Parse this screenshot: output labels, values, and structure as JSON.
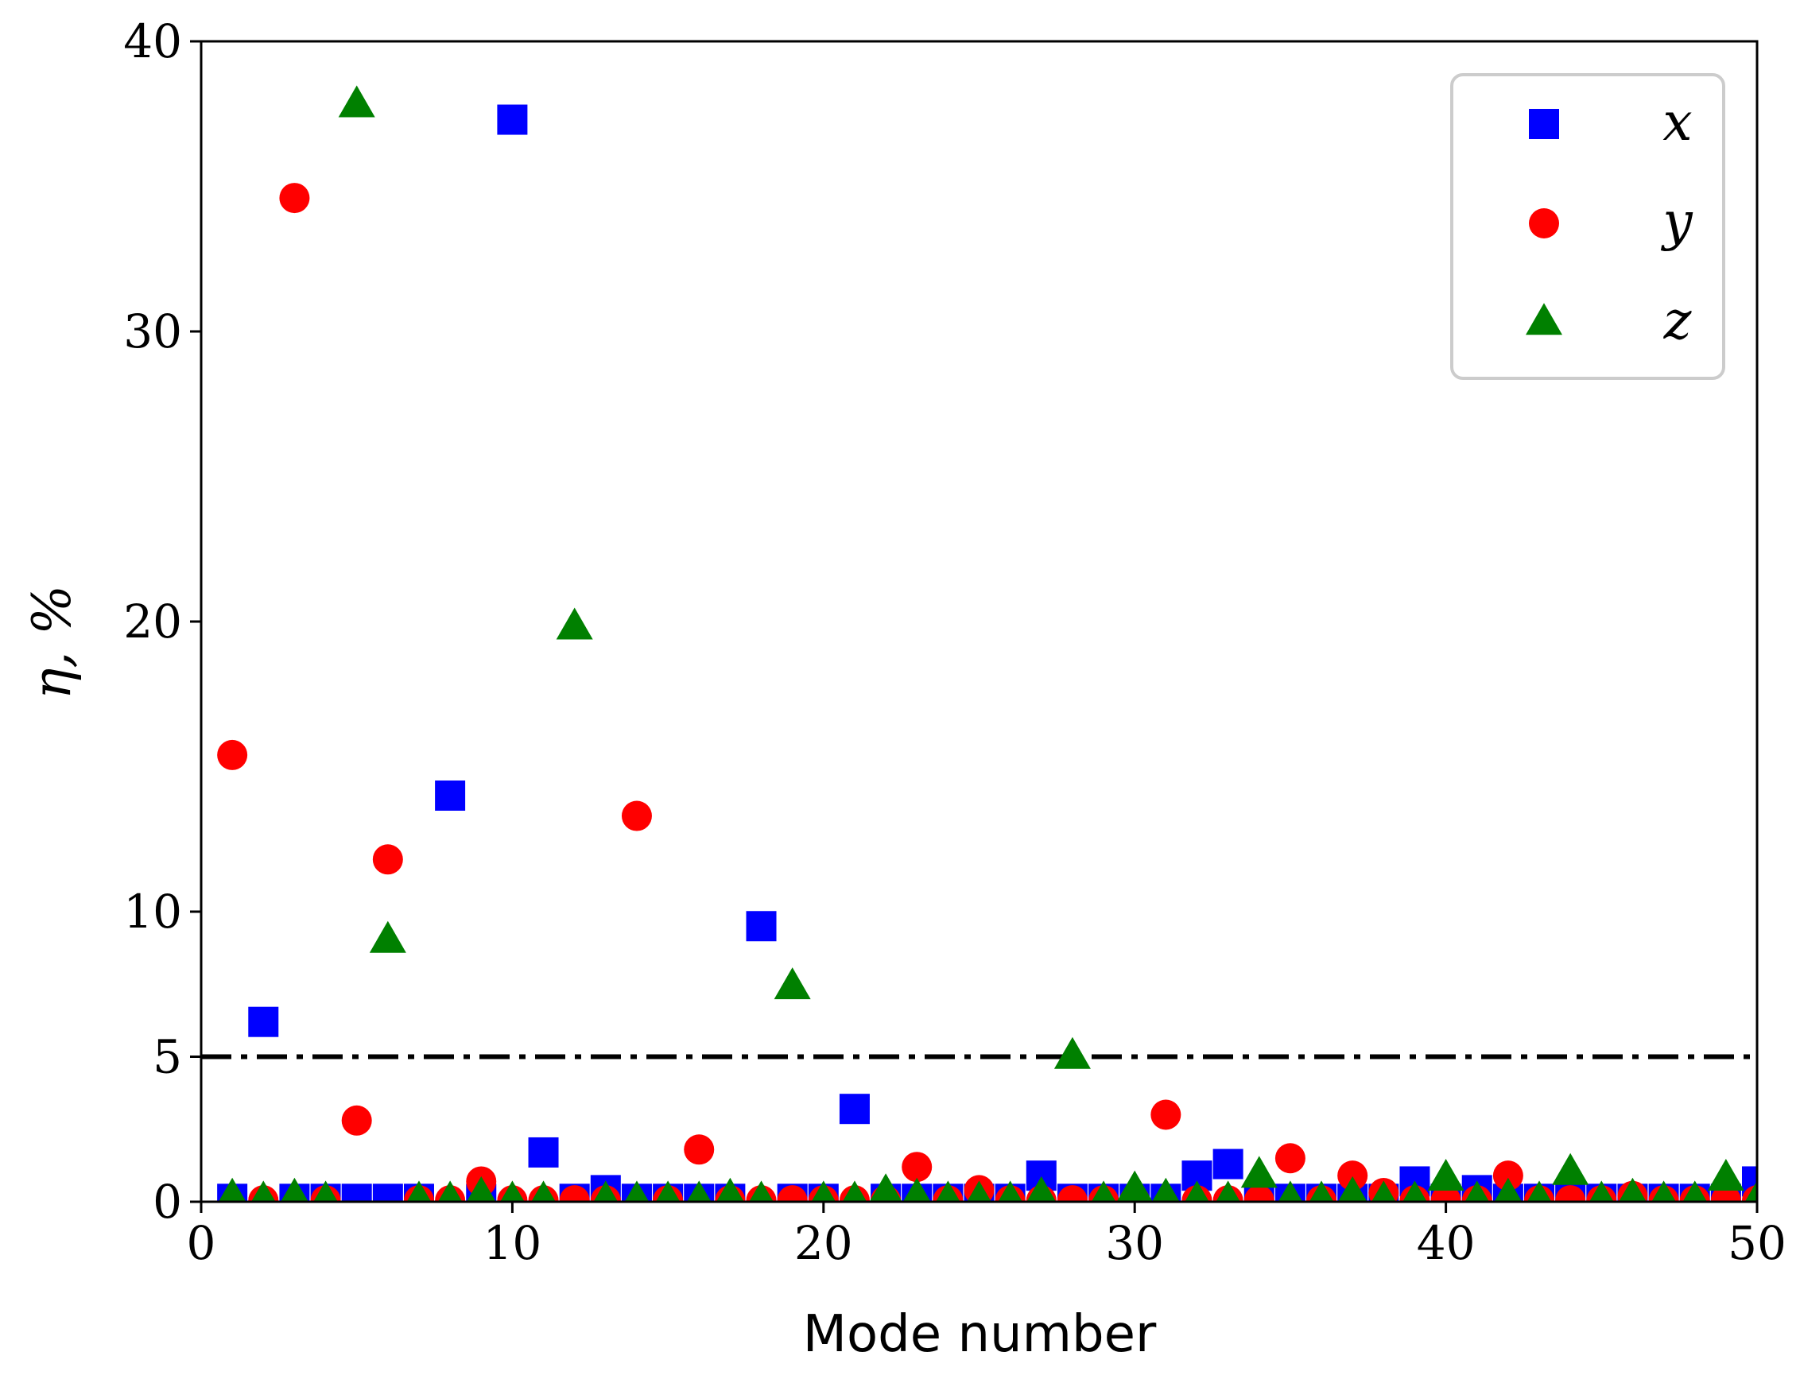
{
  "chart_data": {
    "type": "scatter",
    "title": "",
    "xlabel": "Mode number",
    "ylabel": "η, %",
    "xlim": [
      0,
      50
    ],
    "ylim": [
      0,
      40
    ],
    "xticks": [
      "0",
      "10",
      "20",
      "30",
      "40",
      "50"
    ],
    "yticks": [
      "0",
      "5",
      "10",
      "20",
      "30",
      "40"
    ],
    "grid": false,
    "legend_position": "top-right",
    "threshold": {
      "value": 5,
      "style": "dash-dot",
      "color": "#000000"
    },
    "series": [
      {
        "name": "x",
        "marker": "square",
        "color": "#0000ff",
        "points": [
          [
            1,
            0.1
          ],
          [
            2,
            6.2
          ],
          [
            3,
            0.1
          ],
          [
            4,
            0.1
          ],
          [
            5,
            0.1
          ],
          [
            6,
            0.1
          ],
          [
            7,
            0.1
          ],
          [
            8,
            14
          ],
          [
            9,
            0.1
          ],
          [
            10,
            37.3
          ],
          [
            11,
            1.7
          ],
          [
            12,
            0.1
          ],
          [
            13,
            0.4
          ],
          [
            14,
            0.1
          ],
          [
            15,
            0.1
          ],
          [
            16,
            0.1
          ],
          [
            17,
            0.1
          ],
          [
            18,
            9.5
          ],
          [
            19,
            0.1
          ],
          [
            20,
            0.1
          ],
          [
            21,
            3.2
          ],
          [
            22,
            0.1
          ],
          [
            23,
            0.1
          ],
          [
            24,
            0.1
          ],
          [
            25,
            0.1
          ],
          [
            26,
            0.1
          ],
          [
            27,
            0.9
          ],
          [
            28,
            0.1
          ],
          [
            29,
            0.1
          ],
          [
            30,
            0.1
          ],
          [
            31,
            0.1
          ],
          [
            32,
            0.9
          ],
          [
            33,
            1.3
          ],
          [
            34,
            0.1
          ],
          [
            35,
            0.1
          ],
          [
            36,
            0.1
          ],
          [
            37,
            0.1
          ],
          [
            38,
            0.1
          ],
          [
            39,
            0.7
          ],
          [
            40,
            0.1
          ],
          [
            41,
            0.4
          ],
          [
            42,
            0.1
          ],
          [
            43,
            0.1
          ],
          [
            44,
            0.1
          ],
          [
            45,
            0.1
          ],
          [
            46,
            0.1
          ],
          [
            47,
            0.1
          ],
          [
            48,
            0.1
          ],
          [
            49,
            0.1
          ],
          [
            50,
            0.7
          ]
        ]
      },
      {
        "name": "y",
        "marker": "circle",
        "color": "#ff0000",
        "points": [
          [
            1,
            15.4
          ],
          [
            2,
            0.05
          ],
          [
            3,
            34.6
          ],
          [
            4,
            0.05
          ],
          [
            5,
            2.8
          ],
          [
            6,
            11.8
          ],
          [
            7,
            0.05
          ],
          [
            8,
            0.05
          ],
          [
            9,
            0.7
          ],
          [
            10,
            0.05
          ],
          [
            11,
            0.05
          ],
          [
            12,
            0.05
          ],
          [
            13,
            0.05
          ],
          [
            14,
            13.3
          ],
          [
            15,
            0.05
          ],
          [
            16,
            1.8
          ],
          [
            17,
            0.05
          ],
          [
            18,
            0.05
          ],
          [
            19,
            0.05
          ],
          [
            20,
            0.05
          ],
          [
            21,
            0.05
          ],
          [
            22,
            0.05
          ],
          [
            23,
            1.2
          ],
          [
            24,
            0.05
          ],
          [
            25,
            0.4
          ],
          [
            26,
            0.05
          ],
          [
            27,
            0.05
          ],
          [
            28,
            0.05
          ],
          [
            29,
            0.05
          ],
          [
            30,
            0.05
          ],
          [
            31,
            3.0
          ],
          [
            32,
            0.05
          ],
          [
            33,
            0.05
          ],
          [
            34,
            0.05
          ],
          [
            35,
            1.5
          ],
          [
            36,
            0.05
          ],
          [
            37,
            0.9
          ],
          [
            38,
            0.3
          ],
          [
            39,
            0.05
          ],
          [
            40,
            0.05
          ],
          [
            41,
            0.05
          ],
          [
            42,
            0.9
          ],
          [
            43,
            0.05
          ],
          [
            44,
            0.05
          ],
          [
            45,
            0.05
          ],
          [
            46,
            0.2
          ],
          [
            47,
            0.05
          ],
          [
            48,
            0.05
          ],
          [
            49,
            0.05
          ],
          [
            50,
            0.05
          ]
        ]
      },
      {
        "name": "z",
        "marker": "triangle",
        "color": "#008000",
        "points": [
          [
            1,
            0.15
          ],
          [
            2,
            0.05
          ],
          [
            3,
            0.15
          ],
          [
            4,
            0.05
          ],
          [
            5,
            37.8
          ],
          [
            6,
            9.0
          ],
          [
            7,
            0.05
          ],
          [
            8,
            0.05
          ],
          [
            9,
            0.2
          ],
          [
            10,
            0.05
          ],
          [
            11,
            0.05
          ],
          [
            12,
            19.8
          ],
          [
            13,
            0.05
          ],
          [
            14,
            0.05
          ],
          [
            15,
            0.05
          ],
          [
            16,
            0.05
          ],
          [
            17,
            0.15
          ],
          [
            18,
            0.05
          ],
          [
            19,
            7.4
          ],
          [
            20,
            0.05
          ],
          [
            21,
            0.05
          ],
          [
            22,
            0.3
          ],
          [
            23,
            0.15
          ],
          [
            24,
            0.05
          ],
          [
            25,
            0.05
          ],
          [
            26,
            0.05
          ],
          [
            27,
            0.2
          ],
          [
            28,
            5.0
          ],
          [
            29,
            0.05
          ],
          [
            30,
            0.4
          ],
          [
            31,
            0.15
          ],
          [
            32,
            0.05
          ],
          [
            33,
            0.05
          ],
          [
            34,
            0.9
          ],
          [
            35,
            0.05
          ],
          [
            36,
            0.05
          ],
          [
            37,
            0.2
          ],
          [
            38,
            0.05
          ],
          [
            39,
            0.05
          ],
          [
            40,
            0.8
          ],
          [
            41,
            0.05
          ],
          [
            42,
            0.15
          ],
          [
            43,
            0.05
          ],
          [
            44,
            1.0
          ],
          [
            45,
            0.05
          ],
          [
            46,
            0.15
          ],
          [
            47,
            0.05
          ],
          [
            48,
            0.05
          ],
          [
            49,
            0.8
          ],
          [
            50,
            0.05
          ]
        ]
      }
    ]
  }
}
